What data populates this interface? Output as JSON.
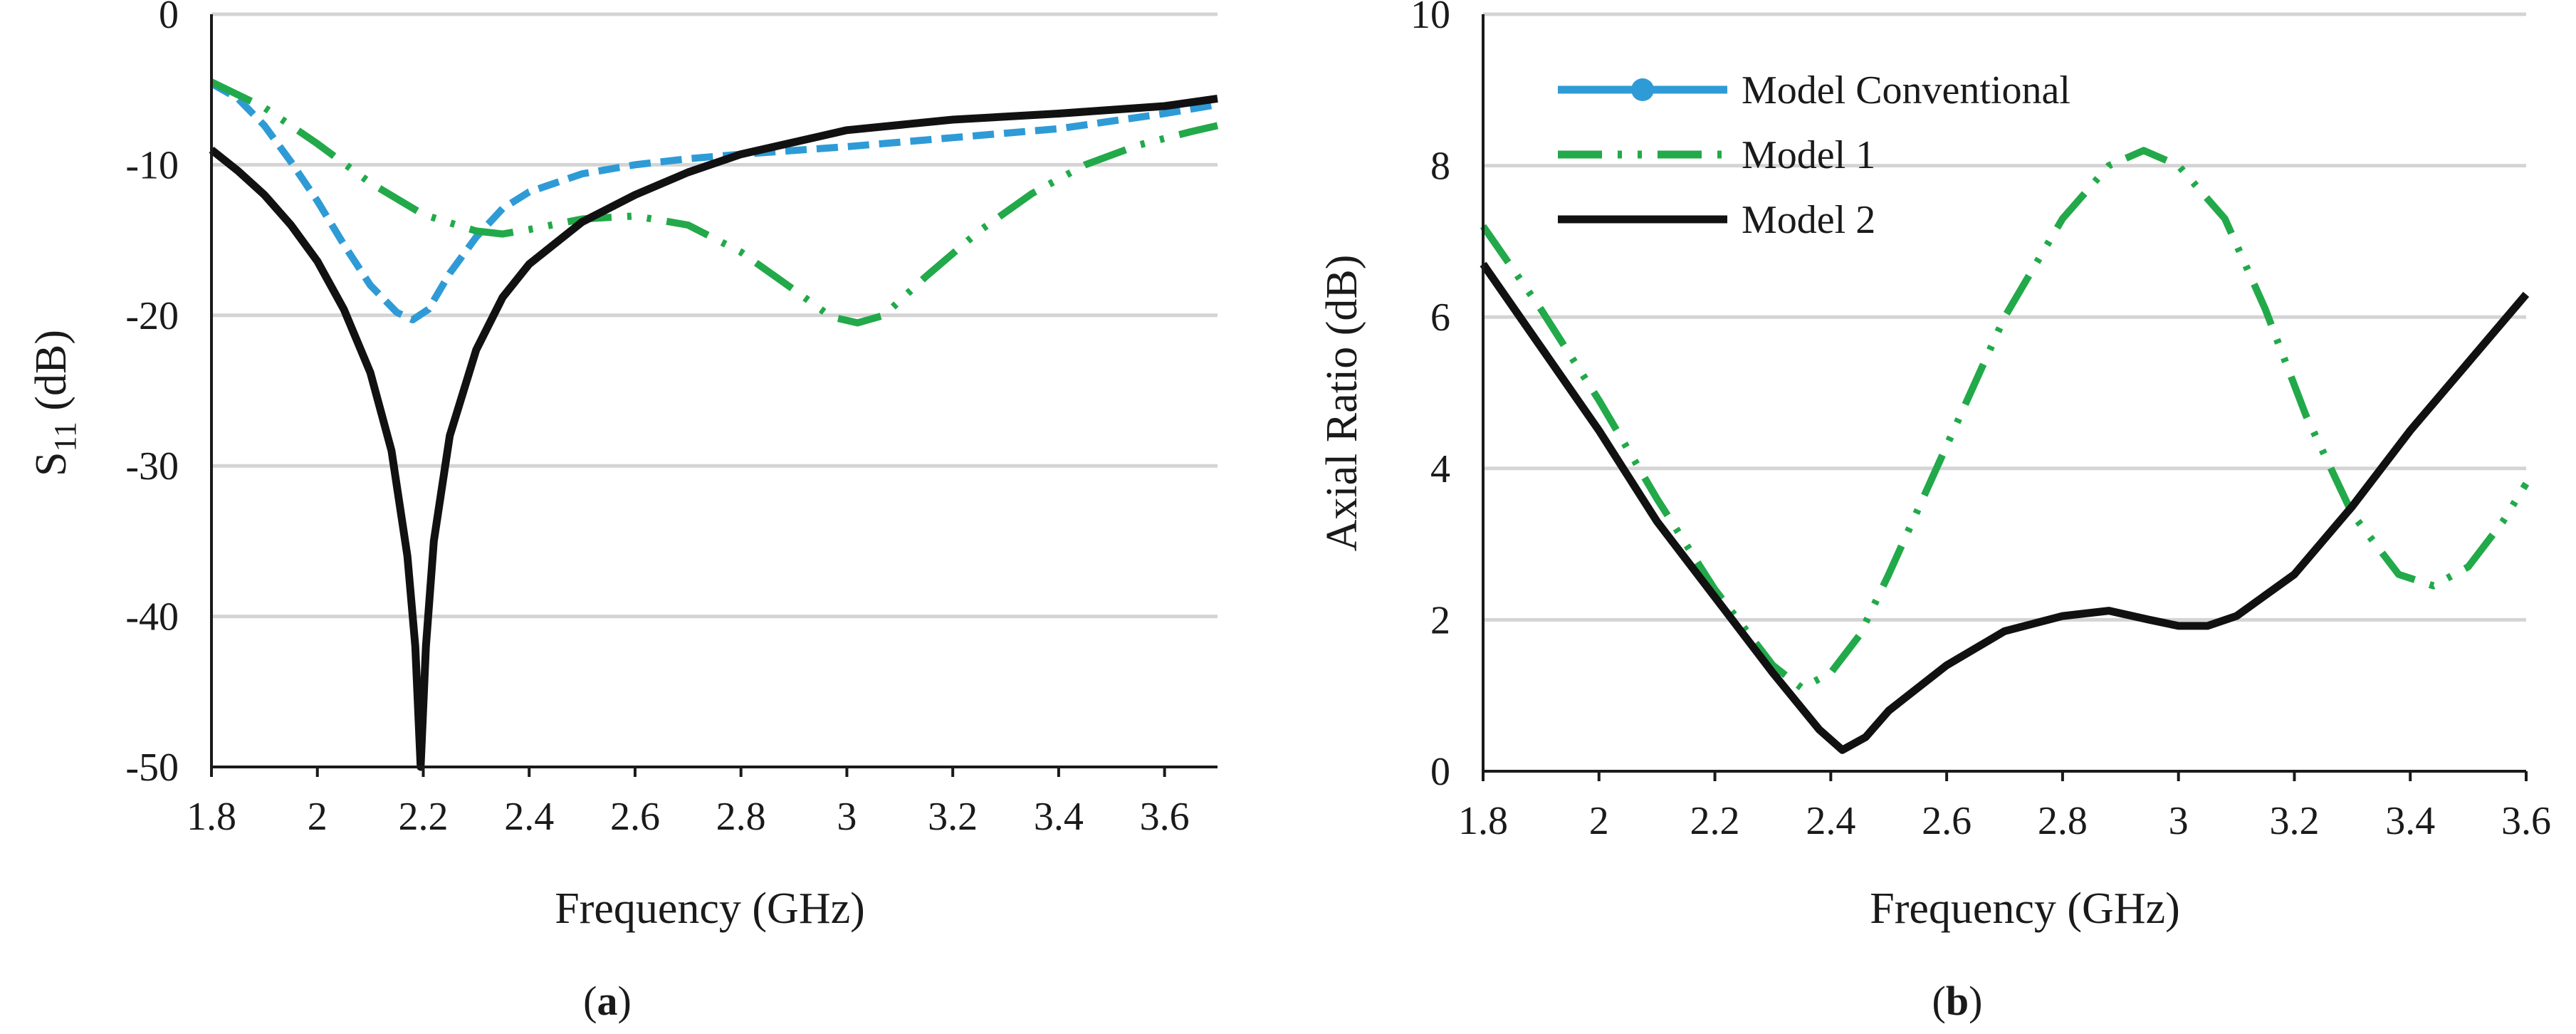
{
  "chart_data": [
    {
      "type": "line",
      "panel": "a",
      "caption_letter": "a",
      "xlabel": "Frequency (GHz)",
      "ylabel_main": "S",
      "ylabel_sub": "11",
      "ylabel_unit": " (dB)",
      "xlim": [
        1.8,
        3.7
      ],
      "ylim": [
        -50,
        0
      ],
      "xticks": [
        1.8,
        2,
        2.2,
        2.4,
        2.6,
        2.8,
        3,
        3.2,
        3.4,
        3.6
      ],
      "xtick_labels": [
        "1.8",
        "2",
        "2.2",
        "2.4",
        "2.6",
        "2.8",
        "3",
        "3.2",
        "3.4",
        "3.6"
      ],
      "yticks": [
        0,
        -10,
        -20,
        -30,
        -40,
        -50
      ],
      "ytick_labels": [
        "0",
        "-10",
        "-20",
        "-30",
        "-40",
        "-50"
      ],
      "grid": true,
      "series": [
        {
          "name": "Model Conventional",
          "color": "#2e9bd6",
          "style": "dashed",
          "points": [
            [
              1.8,
              -4.6
            ],
            [
              1.85,
              -5.6
            ],
            [
              1.9,
              -7.4
            ],
            [
              1.95,
              -9.8
            ],
            [
              2.0,
              -12.4
            ],
            [
              2.05,
              -15.3
            ],
            [
              2.1,
              -18.0
            ],
            [
              2.15,
              -19.8
            ],
            [
              2.18,
              -20.3
            ],
            [
              2.21,
              -19.6
            ],
            [
              2.25,
              -17.2
            ],
            [
              2.3,
              -14.8
            ],
            [
              2.35,
              -12.9
            ],
            [
              2.4,
              -11.8
            ],
            [
              2.5,
              -10.6
            ],
            [
              2.6,
              -10.0
            ],
            [
              2.7,
              -9.6
            ],
            [
              2.8,
              -9.3
            ],
            [
              3.0,
              -8.8
            ],
            [
              3.2,
              -8.2
            ],
            [
              3.4,
              -7.6
            ],
            [
              3.6,
              -6.6
            ],
            [
              3.7,
              -6.0
            ]
          ]
        },
        {
          "name": "Model 1",
          "color": "#22a94a",
          "style": "dash-dot-dot",
          "points": [
            [
              1.8,
              -4.5
            ],
            [
              1.9,
              -6.2
            ],
            [
              2.0,
              -8.6
            ],
            [
              2.1,
              -11.2
            ],
            [
              2.2,
              -13.3
            ],
            [
              2.3,
              -14.4
            ],
            [
              2.35,
              -14.6
            ],
            [
              2.4,
              -14.3
            ],
            [
              2.5,
              -13.6
            ],
            [
              2.6,
              -13.4
            ],
            [
              2.7,
              -14.0
            ],
            [
              2.8,
              -15.8
            ],
            [
              2.9,
              -18.3
            ],
            [
              2.97,
              -20.1
            ],
            [
              3.02,
              -20.5
            ],
            [
              3.07,
              -20.0
            ],
            [
              3.15,
              -17.4
            ],
            [
              3.25,
              -14.4
            ],
            [
              3.35,
              -11.9
            ],
            [
              3.45,
              -10.0
            ],
            [
              3.55,
              -8.7
            ],
            [
              3.65,
              -7.8
            ],
            [
              3.7,
              -7.4
            ]
          ]
        },
        {
          "name": "Model 2",
          "color": "#111111",
          "style": "solid",
          "points": [
            [
              1.8,
              -9.0
            ],
            [
              1.85,
              -10.4
            ],
            [
              1.9,
              -12.0
            ],
            [
              1.95,
              -14.0
            ],
            [
              2.0,
              -16.4
            ],
            [
              2.05,
              -19.6
            ],
            [
              2.1,
              -23.8
            ],
            [
              2.14,
              -29.0
            ],
            [
              2.17,
              -36.0
            ],
            [
              2.185,
              -42.0
            ],
            [
              2.195,
              -50.0
            ],
            [
              2.205,
              -42.0
            ],
            [
              2.22,
              -35.0
            ],
            [
              2.25,
              -28.0
            ],
            [
              2.3,
              -22.3
            ],
            [
              2.35,
              -18.8
            ],
            [
              2.4,
              -16.6
            ],
            [
              2.5,
              -13.8
            ],
            [
              2.6,
              -12.0
            ],
            [
              2.7,
              -10.5
            ],
            [
              2.8,
              -9.3
            ],
            [
              3.0,
              -7.7
            ],
            [
              3.2,
              -7.0
            ],
            [
              3.4,
              -6.6
            ],
            [
              3.6,
              -6.1
            ],
            [
              3.7,
              -5.6
            ]
          ]
        }
      ]
    },
    {
      "type": "line",
      "panel": "b",
      "caption_letter": "b",
      "xlabel": "Frequency (GHz)",
      "ylabel": "Axial Ratio (dB)",
      "xlim": [
        1.8,
        3.6
      ],
      "ylim": [
        0,
        10
      ],
      "xticks": [
        1.8,
        2,
        2.2,
        2.4,
        2.6,
        2.8,
        3,
        3.2,
        3.4,
        3.6
      ],
      "xtick_labels": [
        "1.8",
        "2",
        "2.2",
        "2.4",
        "2.6",
        "2.8",
        "3",
        "3.2",
        "3.4",
        "3.6"
      ],
      "yticks": [
        0,
        2,
        4,
        6,
        8,
        10
      ],
      "ytick_labels": [
        "0",
        "2",
        "4",
        "6",
        "8",
        "10"
      ],
      "grid": true,
      "legend_position": "top-left",
      "series": [
        {
          "name": "Model 1",
          "color": "#22a94a",
          "style": "dash-dot-dot",
          "points": [
            [
              1.8,
              7.2
            ],
            [
              1.9,
              6.1
            ],
            [
              2.0,
              4.9
            ],
            [
              2.1,
              3.6
            ],
            [
              2.2,
              2.4
            ],
            [
              2.3,
              1.4
            ],
            [
              2.35,
              1.1
            ],
            [
              2.4,
              1.3
            ],
            [
              2.45,
              1.8
            ],
            [
              2.5,
              2.6
            ],
            [
              2.6,
              4.3
            ],
            [
              2.7,
              6.0
            ],
            [
              2.8,
              7.3
            ],
            [
              2.88,
              8.0
            ],
            [
              2.94,
              8.2
            ],
            [
              3.0,
              8.0
            ],
            [
              3.08,
              7.3
            ],
            [
              3.15,
              6.1
            ],
            [
              3.22,
              4.7
            ],
            [
              3.3,
              3.4
            ],
            [
              3.38,
              2.6
            ],
            [
              3.44,
              2.45
            ],
            [
              3.5,
              2.7
            ],
            [
              3.56,
              3.3
            ],
            [
              3.6,
              3.8
            ]
          ]
        },
        {
          "name": "Model 2",
          "color": "#111111",
          "style": "solid",
          "points": [
            [
              1.8,
              6.7
            ],
            [
              1.9,
              5.6
            ],
            [
              2.0,
              4.5
            ],
            [
              2.1,
              3.3
            ],
            [
              2.2,
              2.3
            ],
            [
              2.3,
              1.3
            ],
            [
              2.38,
              0.55
            ],
            [
              2.42,
              0.28
            ],
            [
              2.46,
              0.45
            ],
            [
              2.5,
              0.8
            ],
            [
              2.6,
              1.4
            ],
            [
              2.7,
              1.85
            ],
            [
              2.8,
              2.05
            ],
            [
              2.88,
              2.12
            ],
            [
              2.95,
              2.0
            ],
            [
              3.0,
              1.92
            ],
            [
              3.05,
              1.92
            ],
            [
              3.1,
              2.05
            ],
            [
              3.2,
              2.6
            ],
            [
              3.3,
              3.5
            ],
            [
              3.4,
              4.5
            ],
            [
              3.5,
              5.4
            ],
            [
              3.6,
              6.3
            ]
          ]
        }
      ],
      "legend": [
        {
          "label": "Model Conventional",
          "color": "#2e9bd6",
          "style": "solid-marker"
        },
        {
          "label": "Model 1",
          "color": "#22a94a",
          "style": "dash-dot-dot"
        },
        {
          "label": "Model 2",
          "color": "#111111",
          "style": "solid"
        }
      ]
    }
  ]
}
